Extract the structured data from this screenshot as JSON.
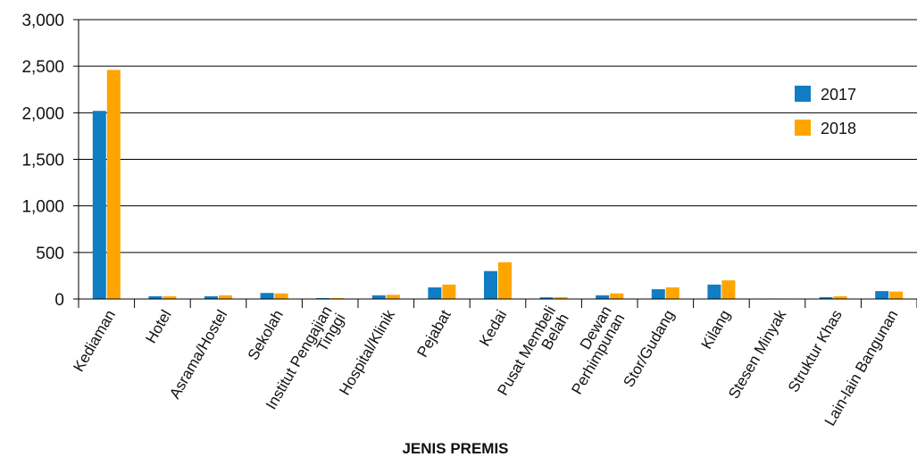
{
  "chart_data": {
    "type": "bar",
    "title": "",
    "xlabel": "JENIS PREMIS",
    "ylabel": "",
    "ylim": [
      0,
      3000
    ],
    "yticks": [
      0,
      500,
      1000,
      1500,
      2000,
      2500,
      3000
    ],
    "ytick_labels": [
      "0",
      "500",
      "1,000",
      "1,500",
      "2,000",
      "2,500",
      "3,000"
    ],
    "grid": true,
    "legend_position": "right",
    "categories": [
      "Kediaman",
      "Hotel",
      "Asrama/Hostel",
      "Sekolah",
      "Institut Pengajian Tinggi",
      "Hospital/Klinik",
      "Pejabat",
      "Kedai",
      "Pusat Membeli Belah",
      "Dewan Perhimpunan",
      "Stor/Gudang",
      "Kilang",
      "Stesen Minyak",
      "Struktur Khas",
      "Lain-lain Bangunan"
    ],
    "category_lines": [
      [
        "Kediaman"
      ],
      [
        "Hotel"
      ],
      [
        "Asrama/Hostel"
      ],
      [
        "Sekolah"
      ],
      [
        "Institut Pengajian",
        "Tinggi"
      ],
      [
        "Hospital/Klinik"
      ],
      [
        "Pejabat"
      ],
      [
        "Kedai"
      ],
      [
        "Pusat Membeli",
        "Belah"
      ],
      [
        "Dewan",
        "Perhimpunan"
      ],
      [
        "Stor/Gudang"
      ],
      [
        "Kilang"
      ],
      [
        "Stesen Minyak"
      ],
      [
        "Struktur Khas"
      ],
      [
        "Lain-lain Bangunan"
      ]
    ],
    "series": [
      {
        "name": "2017",
        "color": "#0f7ec4",
        "values": [
          2020,
          30,
          30,
          65,
          10,
          40,
          125,
          300,
          18,
          40,
          105,
          155,
          5,
          20,
          85
        ]
      },
      {
        "name": "2018",
        "color": "#ffa500",
        "values": [
          2460,
          30,
          40,
          60,
          10,
          45,
          155,
          395,
          20,
          60,
          125,
          200,
          5,
          30,
          80
        ]
      }
    ]
  }
}
